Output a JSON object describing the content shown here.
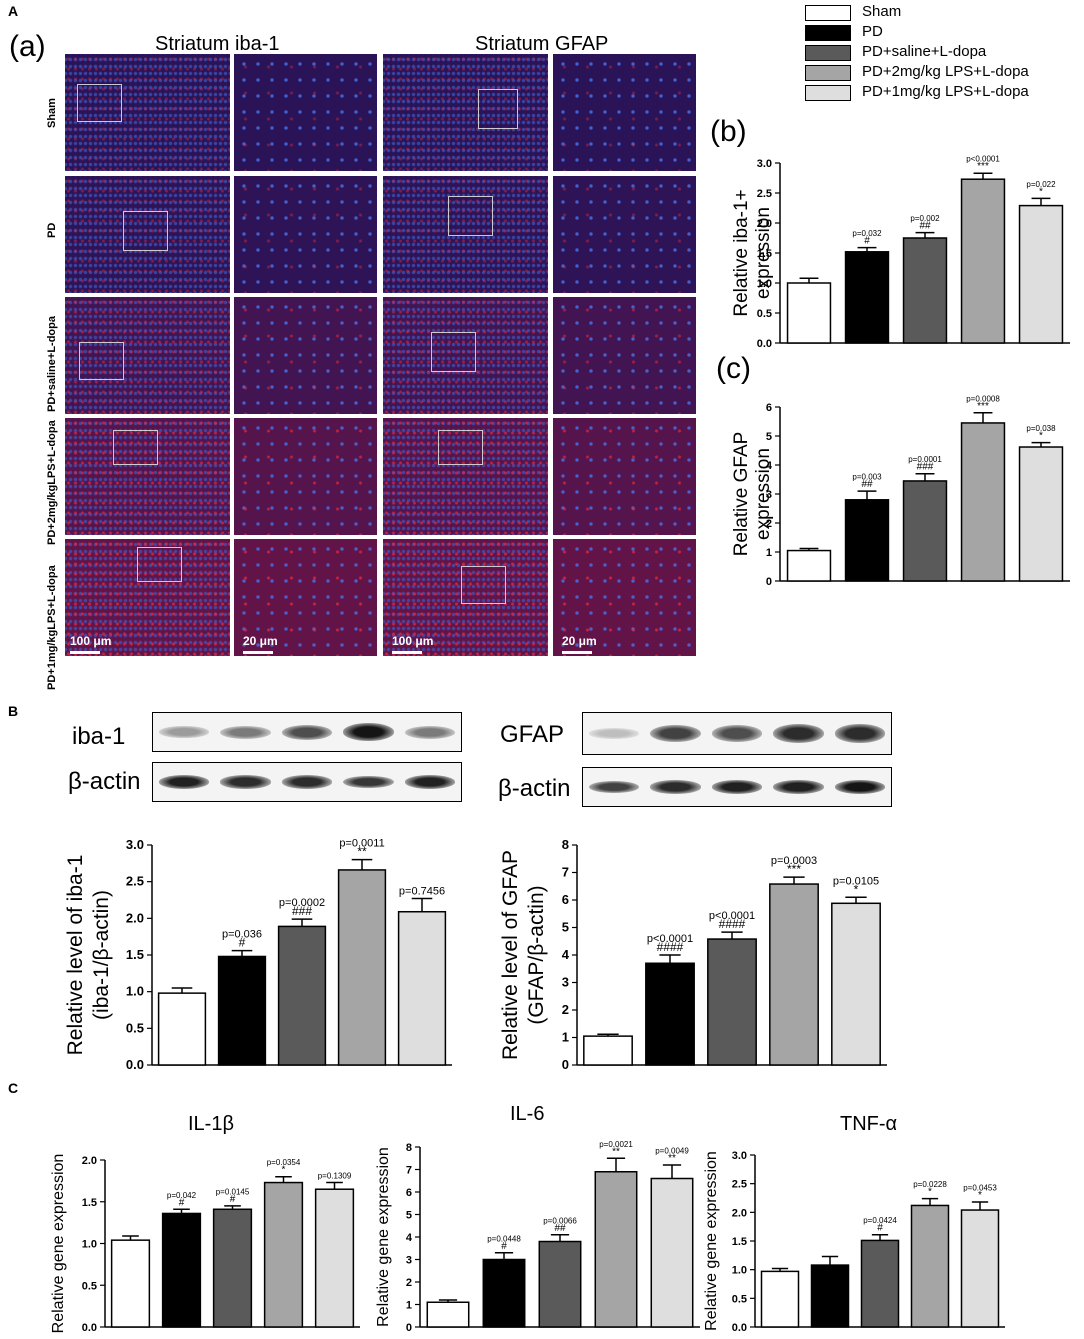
{
  "panels": {
    "A": "A",
    "B": "B",
    "C": "C",
    "a": "(a)",
    "b": "(b)",
    "c": "(c)"
  },
  "microscopy": {
    "col_titles": [
      "Striatum  iba-1",
      "Striatum  GFAP"
    ],
    "row_labels": [
      "Sham",
      "PD",
      "PD+saline+L-dopa",
      "PD+2mg/kgLPS+L-dopa",
      "PD+1mg/kgLPS+L-dopa"
    ],
    "scale_bars": [
      "100 μm",
      "20 μm",
      "100 μm",
      "20 μm"
    ]
  },
  "legend": [
    {
      "label": "Sham",
      "color": "#ffffff"
    },
    {
      "label": "PD",
      "color": "#000000"
    },
    {
      "label": "PD+saline+L-dopa",
      "color": "#5a5a5a"
    },
    {
      "label": "PD+2mg/kg LPS+L-dopa",
      "color": "#a5a5a5"
    },
    {
      "label": "PD+1mg/kg LPS+L-dopa",
      "color": "#dedede"
    }
  ],
  "blots": {
    "iba1_label": "iba-1",
    "actin_label": "β-actin",
    "gfap_label": "GFAP",
    "actin_label2": "β-actin",
    "iba1_intensity": [
      0.35,
      0.5,
      0.7,
      0.95,
      0.5
    ],
    "gfap_intensity": [
      0.2,
      0.75,
      0.7,
      0.85,
      0.85
    ]
  },
  "gene_titles": [
    "IL-1β",
    "IL-6",
    "TNF-α"
  ],
  "chart_data": [
    {
      "id": "b",
      "type": "bar",
      "ylabel_lines": [
        "Relative  iba-1+",
        "expression"
      ],
      "ylim": [
        0,
        3.0
      ],
      "yticks": [
        "0.0",
        "0.5",
        "1.0",
        "1.5",
        "2.0",
        "2.5",
        "3.0"
      ],
      "values": [
        1.0,
        1.52,
        1.75,
        2.73,
        2.29
      ],
      "errors": [
        0.08,
        0.07,
        0.09,
        0.1,
        0.12
      ],
      "pvalues": [
        "",
        "p=0.032",
        "p=0.002",
        "p<0.0001",
        "p=0.022"
      ],
      "marks": [
        "",
        "#",
        "##",
        "***",
        "*"
      ]
    },
    {
      "id": "c",
      "type": "bar",
      "ylabel_lines": [
        "Relative  GFAP",
        "expression"
      ],
      "ylim": [
        0,
        6
      ],
      "yticks": [
        "0",
        "1",
        "2",
        "3",
        "4",
        "5",
        "6"
      ],
      "values": [
        1.05,
        2.8,
        3.45,
        5.45,
        4.62
      ],
      "errors": [
        0.07,
        0.3,
        0.25,
        0.35,
        0.15
      ],
      "pvalues": [
        "",
        "p=0.003",
        "p=0.0001",
        "p=0.0008",
        "p=0.038"
      ],
      "marks": [
        "",
        "##",
        "###",
        "***",
        "*"
      ]
    },
    {
      "id": "B-iba1",
      "type": "bar",
      "ylabel_lines": [
        "Relative level of  iba-1",
        "(iba-1/β-actin)"
      ],
      "ylim": [
        0,
        3.0
      ],
      "yticks": [
        "0.0",
        "0.5",
        "1.0",
        "1.5",
        "2.0",
        "2.5",
        "3.0"
      ],
      "values": [
        0.98,
        1.48,
        1.89,
        2.66,
        2.09
      ],
      "errors": [
        0.07,
        0.08,
        0.1,
        0.14,
        0.18
      ],
      "pvalues": [
        "",
        "p=0.036",
        "p=0.0002",
        "p=0.0011",
        "p=0.7456"
      ],
      "marks": [
        "",
        "#",
        "###",
        "**",
        ""
      ]
    },
    {
      "id": "B-gfap",
      "type": "bar",
      "ylabel_lines": [
        "Relative level of  GFAP",
        "(GFAP/β-actin)"
      ],
      "ylim": [
        0,
        8
      ],
      "yticks": [
        "0",
        "1",
        "2",
        "3",
        "4",
        "5",
        "6",
        "7",
        "8"
      ],
      "values": [
        1.05,
        3.7,
        4.58,
        6.58,
        5.88
      ],
      "errors": [
        0.07,
        0.3,
        0.25,
        0.25,
        0.22
      ],
      "pvalues": [
        "",
        "p<0.0001",
        "p<0.0001",
        "p=0.0003",
        "p=0.0105"
      ],
      "marks": [
        "",
        "####",
        "####",
        "***",
        "*"
      ]
    },
    {
      "id": "C-il1b",
      "type": "bar",
      "ylabel_lines": [
        "Relative gene expression"
      ],
      "ylim": [
        0,
        2.0
      ],
      "yticks": [
        "0.0",
        "0.5",
        "1.0",
        "1.5",
        "2.0"
      ],
      "values": [
        1.04,
        1.36,
        1.41,
        1.73,
        1.65
      ],
      "errors": [
        0.05,
        0.05,
        0.04,
        0.07,
        0.08
      ],
      "pvalues": [
        "",
        "p=0.042",
        "p=0.0145",
        "p=0.0354",
        "p=0.1309"
      ],
      "marks": [
        "",
        "#",
        "#",
        "*",
        ""
      ]
    },
    {
      "id": "C-il6",
      "type": "bar",
      "ylabel_lines": [
        "Relative gene expression"
      ],
      "ylim": [
        0,
        8
      ],
      "yticks": [
        "0",
        "1",
        "2",
        "3",
        "4",
        "5",
        "6",
        "7",
        "8"
      ],
      "values": [
        1.1,
        3.0,
        3.8,
        6.9,
        6.6
      ],
      "errors": [
        0.1,
        0.3,
        0.3,
        0.6,
        0.6
      ],
      "pvalues": [
        "",
        "p=0.0448",
        "p=0.0066",
        "p=0.0021",
        "p=0.0049"
      ],
      "marks": [
        "",
        "#",
        "##",
        "**",
        "**"
      ]
    },
    {
      "id": "C-tnfa",
      "type": "bar",
      "ylabel_lines": [
        "Relative gene expression"
      ],
      "ylim": [
        0,
        3.0
      ],
      "yticks": [
        "0.0",
        "0.5",
        "1.0",
        "1.5",
        "2.0",
        "2.5",
        "3.0"
      ],
      "values": [
        0.97,
        1.08,
        1.51,
        2.12,
        2.04
      ],
      "errors": [
        0.05,
        0.15,
        0.1,
        0.12,
        0.14
      ],
      "pvalues": [
        "",
        "",
        "p=0.0424",
        "p=0.0228",
        "p=0.0453"
      ],
      "marks": [
        "",
        "",
        "#",
        "*",
        "*"
      ]
    }
  ]
}
